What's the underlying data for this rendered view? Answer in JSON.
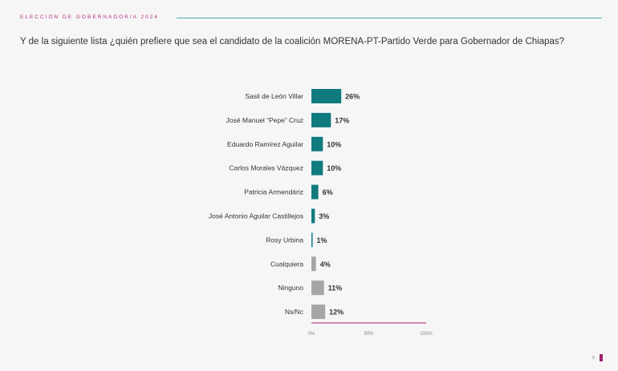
{
  "header": {
    "kicker": "ELECCIÓN DE GOBERNADOR/A 2024",
    "question": "Y de la siguiente lista ¿quién prefiere que sea el candidato de la coalición MORENA-PT-Partido Verde para Gobernador de Chiapas?"
  },
  "page_number": "9",
  "colors": {
    "candidate": "#0f7b7f",
    "other": "#a6a6a6",
    "axis": "#c9609f",
    "accent": "#a0206e"
  },
  "chart_data": {
    "type": "bar",
    "orientation": "horizontal",
    "categories": [
      "Sasil de León Villar",
      "José Manuel “Pepe” Cruz",
      "Eduardo Ramírez Aguilar",
      "Carlos Morales Vázquez",
      "Patricia Armendáriz",
      "José Antonio Aguilar Castillejos",
      "Rosy Urbina",
      "Cualquiera",
      "Ninguno",
      "Ns/Nc"
    ],
    "values": [
      26,
      17,
      10,
      10,
      6,
      3,
      1,
      4,
      11,
      12
    ],
    "labels": [
      "26%",
      "17%",
      "10%",
      "10%",
      "6%",
      "3%",
      "1%",
      "4%",
      "11%",
      "12%"
    ],
    "groups": [
      "candidate",
      "candidate",
      "candidate",
      "candidate",
      "candidate",
      "candidate",
      "candidate",
      "other",
      "other",
      "other"
    ],
    "xlim": [
      0,
      100
    ],
    "xticks": [
      "0%",
      "50%",
      "100%"
    ],
    "xtick_values": [
      0,
      50,
      100
    ],
    "grid": false
  }
}
